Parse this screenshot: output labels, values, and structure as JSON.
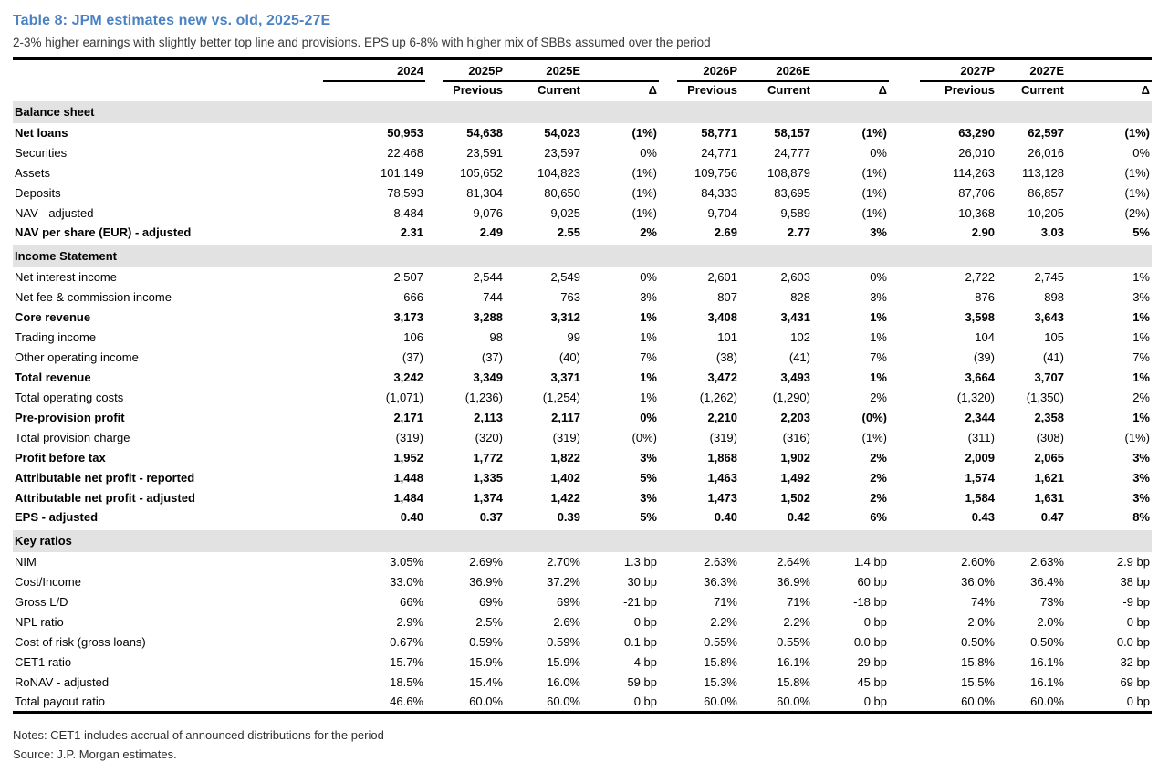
{
  "title": "Table 8: JPM estimates new vs. old, 2025-27E",
  "subtitle": "2-3% higher earnings with slightly better top line and provisions. EPS up 6-8% with higher mix of SBBs assumed over the period",
  "notes": "Notes: CET1 includes accrual of announced distributions for the period",
  "source": "Source: J.P. Morgan estimates.",
  "colors": {
    "title_blue": "#4a82c4",
    "section_band_gray": "#e2e2e2"
  },
  "header": {
    "col2024": "2024",
    "groups": [
      {
        "p": "2025P",
        "e": "2025E"
      },
      {
        "p": "2026P",
        "e": "2026E"
      },
      {
        "p": "2027P",
        "e": "2027E"
      }
    ],
    "sub": {
      "previous": "Previous",
      "current": "Current",
      "delta": "Δ"
    }
  },
  "sections": [
    {
      "name": "Balance sheet",
      "rows": [
        {
          "label": "Net loans",
          "bold": true,
          "values": [
            "50,953",
            "54,638",
            "54,023",
            "(1%)",
            "58,771",
            "58,157",
            "(1%)",
            "63,290",
            "62,597",
            "(1%)"
          ]
        },
        {
          "label": "Securities",
          "bold": false,
          "values": [
            "22,468",
            "23,591",
            "23,597",
            "0%",
            "24,771",
            "24,777",
            "0%",
            "26,010",
            "26,016",
            "0%"
          ]
        },
        {
          "label": "Assets",
          "bold": false,
          "values": [
            "101,149",
            "105,652",
            "104,823",
            "(1%)",
            "109,756",
            "108,879",
            "(1%)",
            "114,263",
            "113,128",
            "(1%)"
          ]
        },
        {
          "label": "Deposits",
          "bold": false,
          "values": [
            "78,593",
            "81,304",
            "80,650",
            "(1%)",
            "84,333",
            "83,695",
            "(1%)",
            "87,706",
            "86,857",
            "(1%)"
          ]
        },
        {
          "label": "NAV - adjusted",
          "bold": false,
          "values": [
            "8,484",
            "9,076",
            "9,025",
            "(1%)",
            "9,704",
            "9,589",
            "(1%)",
            "10,368",
            "10,205",
            "(2%)"
          ]
        },
        {
          "label": "NAV per share (EUR) - adjusted",
          "bold": true,
          "values": [
            "2.31",
            "2.49",
            "2.55",
            "2%",
            "2.69",
            "2.77",
            "3%",
            "2.90",
            "3.03",
            "5%"
          ]
        }
      ]
    },
    {
      "name": "Income Statement",
      "rows": [
        {
          "label": "Net interest income",
          "bold": false,
          "values": [
            "2,507",
            "2,544",
            "2,549",
            "0%",
            "2,601",
            "2,603",
            "0%",
            "2,722",
            "2,745",
            "1%"
          ]
        },
        {
          "label": "Net fee & commission income",
          "bold": false,
          "values": [
            "666",
            "744",
            "763",
            "3%",
            "807",
            "828",
            "3%",
            "876",
            "898",
            "3%"
          ]
        },
        {
          "label": "Core revenue",
          "bold": true,
          "values": [
            "3,173",
            "3,288",
            "3,312",
            "1%",
            "3,408",
            "3,431",
            "1%",
            "3,598",
            "3,643",
            "1%"
          ]
        },
        {
          "label": "Trading income",
          "bold": false,
          "values": [
            "106",
            "98",
            "99",
            "1%",
            "101",
            "102",
            "1%",
            "104",
            "105",
            "1%"
          ]
        },
        {
          "label": "Other operating income",
          "bold": false,
          "values": [
            "(37)",
            "(37)",
            "(40)",
            "7%",
            "(38)",
            "(41)",
            "7%",
            "(39)",
            "(41)",
            "7%"
          ]
        },
        {
          "label": "Total revenue",
          "bold": true,
          "values": [
            "3,242",
            "3,349",
            "3,371",
            "1%",
            "3,472",
            "3,493",
            "1%",
            "3,664",
            "3,707",
            "1%"
          ]
        },
        {
          "label": "Total operating costs",
          "bold": false,
          "values": [
            "(1,071)",
            "(1,236)",
            "(1,254)",
            "1%",
            "(1,262)",
            "(1,290)",
            "2%",
            "(1,320)",
            "(1,350)",
            "2%"
          ]
        },
        {
          "label": "Pre-provision profit",
          "bold": true,
          "values": [
            "2,171",
            "2,113",
            "2,117",
            "0%",
            "2,210",
            "2,203",
            "(0%)",
            "2,344",
            "2,358",
            "1%"
          ]
        },
        {
          "label": "Total provision charge",
          "bold": false,
          "values": [
            "(319)",
            "(320)",
            "(319)",
            "(0%)",
            "(319)",
            "(316)",
            "(1%)",
            "(311)",
            "(308)",
            "(1%)"
          ]
        },
        {
          "label": "Profit before tax",
          "bold": true,
          "values": [
            "1,952",
            "1,772",
            "1,822",
            "3%",
            "1,868",
            "1,902",
            "2%",
            "2,009",
            "2,065",
            "3%"
          ]
        },
        {
          "label": "Attributable net profit - reported",
          "bold": true,
          "values": [
            "1,448",
            "1,335",
            "1,402",
            "5%",
            "1,463",
            "1,492",
            "2%",
            "1,574",
            "1,621",
            "3%"
          ]
        },
        {
          "label": "Attributable net profit - adjusted",
          "bold": true,
          "values": [
            "1,484",
            "1,374",
            "1,422",
            "3%",
            "1,473",
            "1,502",
            "2%",
            "1,584",
            "1,631",
            "3%"
          ]
        },
        {
          "label": "EPS - adjusted",
          "bold": true,
          "values": [
            "0.40",
            "0.37",
            "0.39",
            "5%",
            "0.40",
            "0.42",
            "6%",
            "0.43",
            "0.47",
            "8%"
          ]
        }
      ]
    },
    {
      "name": "Key ratios",
      "rows": [
        {
          "label": "NIM",
          "bold": false,
          "values": [
            "3.05%",
            "2.69%",
            "2.70%",
            "1.3 bp",
            "2.63%",
            "2.64%",
            "1.4 bp",
            "2.60%",
            "2.63%",
            "2.9 bp"
          ]
        },
        {
          "label": "Cost/Income",
          "bold": false,
          "values": [
            "33.0%",
            "36.9%",
            "37.2%",
            "30 bp",
            "36.3%",
            "36.9%",
            "60 bp",
            "36.0%",
            "36.4%",
            "38 bp"
          ]
        },
        {
          "label": "Gross L/D",
          "bold": false,
          "values": [
            "66%",
            "69%",
            "69%",
            "-21 bp",
            "71%",
            "71%",
            "-18 bp",
            "74%",
            "73%",
            "-9 bp"
          ]
        },
        {
          "label": "NPL ratio",
          "bold": false,
          "values": [
            "2.9%",
            "2.5%",
            "2.6%",
            "0 bp",
            "2.2%",
            "2.2%",
            "0 bp",
            "2.0%",
            "2.0%",
            "0 bp"
          ]
        },
        {
          "label": "Cost of risk (gross loans)",
          "bold": false,
          "values": [
            "0.67%",
            "0.59%",
            "0.59%",
            "0.1 bp",
            "0.55%",
            "0.55%",
            "0.0 bp",
            "0.50%",
            "0.50%",
            "0.0 bp"
          ]
        },
        {
          "label": "CET1 ratio",
          "bold": false,
          "values": [
            "15.7%",
            "15.9%",
            "15.9%",
            "4 bp",
            "15.8%",
            "16.1%",
            "29 bp",
            "15.8%",
            "16.1%",
            "32 bp"
          ]
        },
        {
          "label": "RoNAV - adjusted",
          "bold": false,
          "values": [
            "18.5%",
            "15.4%",
            "16.0%",
            "59 bp",
            "15.3%",
            "15.8%",
            "45 bp",
            "15.5%",
            "16.1%",
            "69 bp"
          ]
        },
        {
          "label": "Total payout ratio",
          "bold": false,
          "values": [
            "46.6%",
            "60.0%",
            "60.0%",
            "0 bp",
            "60.0%",
            "60.0%",
            "0 bp",
            "60.0%",
            "60.0%",
            "0 bp"
          ]
        }
      ]
    }
  ]
}
